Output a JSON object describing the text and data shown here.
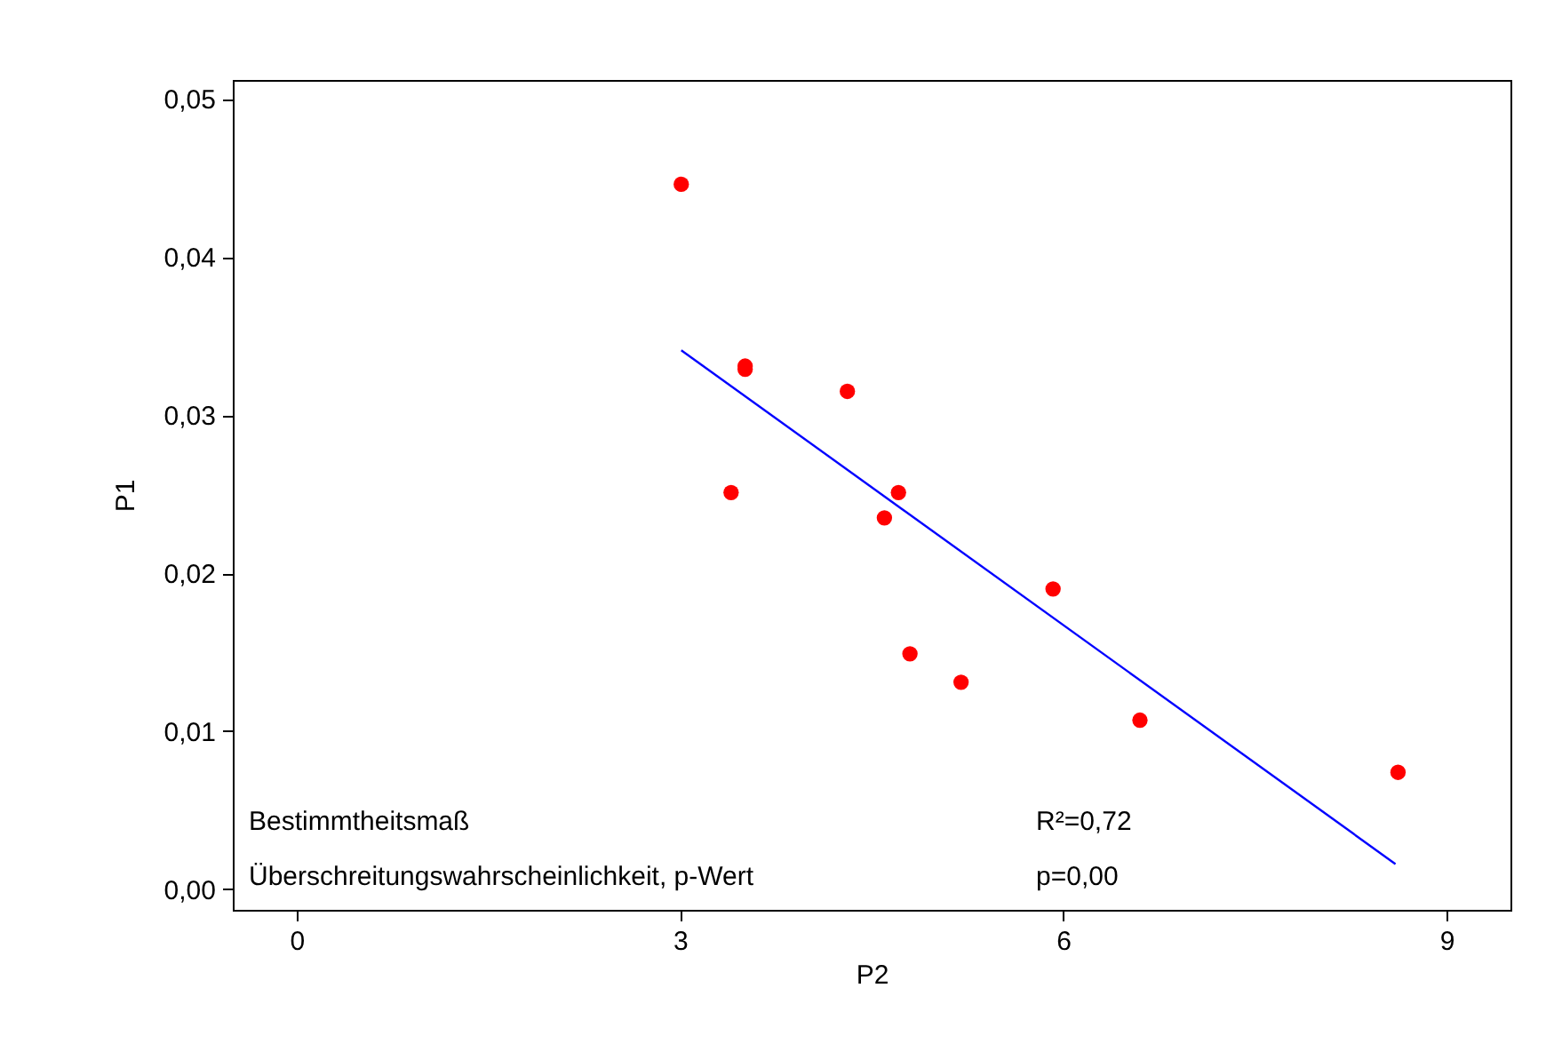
{
  "chart_data": {
    "type": "scatter",
    "xlabel": "P2",
    "ylabel": "P1",
    "xlim": [
      -0.5,
      9.5
    ],
    "ylim": [
      -0.0013,
      0.0512
    ],
    "xticks": [
      0,
      3,
      6,
      9
    ],
    "yticks": [
      {
        "value": 0,
        "label": "0,00"
      },
      {
        "value": 0.01,
        "label": "0,01"
      },
      {
        "value": 0.02,
        "label": "0,02"
      },
      {
        "value": 0.03,
        "label": "0,03"
      },
      {
        "value": 0.04,
        "label": "0,04"
      },
      {
        "value": 0.05,
        "label": "0,05"
      }
    ],
    "grid": false,
    "series": [
      {
        "marker": "circle",
        "color": "#ff0000",
        "x": [
          3.01,
          3.51,
          3.51,
          4.31,
          3.4,
          4.71,
          4.6,
          5.92,
          4.8,
          5.2,
          6.6,
          8.62
        ],
        "values": [
          0.0446,
          0.0331,
          0.0329,
          0.0315,
          0.0251,
          0.0251,
          0.0235,
          0.019,
          0.0149,
          0.0131,
          0.0107,
          0.0074
        ]
      },
      {
        "type": "line",
        "color": "#0000ff",
        "line_style": "solid",
        "x": [
          3.01,
          8.6
        ],
        "values": [
          0.0341,
          0.0016
        ]
      }
    ],
    "annotations": [
      "Bestimmtheitsmaß",
      "R²=0,72",
      "Überschreitungswahrscheinlichkeit, p-Wert",
      "p=0,00"
    ]
  }
}
